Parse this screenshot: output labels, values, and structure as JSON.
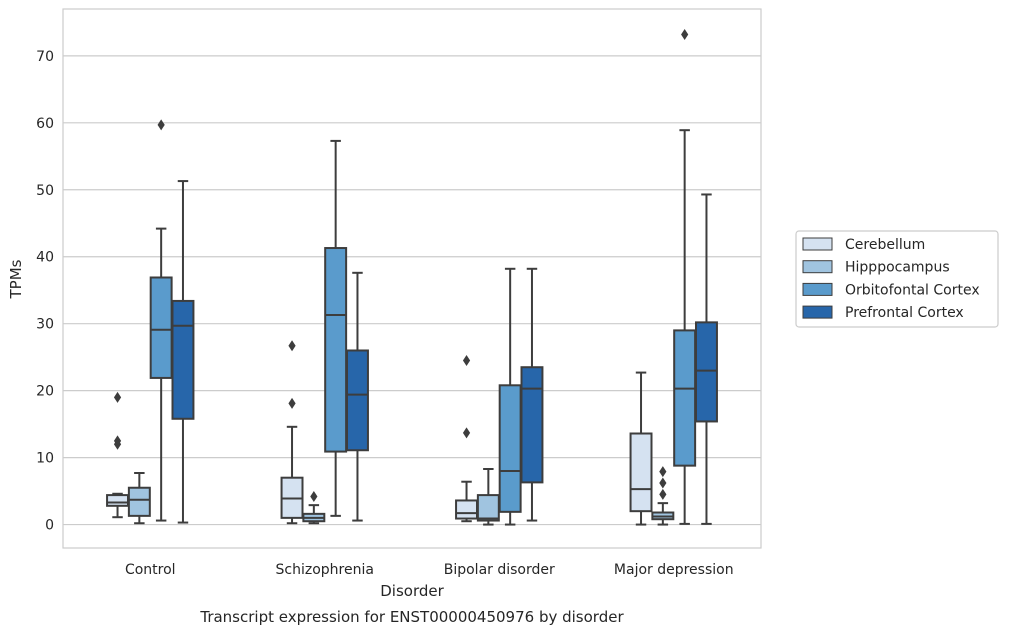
{
  "caption": "Transcript expression for ENST00000450976 by disorder",
  "chart_data": {
    "type": "box",
    "xlabel": "Disorder",
    "ylabel": "TPMs",
    "ylim": [
      -3.5,
      77
    ],
    "yticks": [
      0,
      10,
      20,
      30,
      40,
      50,
      60,
      70
    ],
    "grid": "horizontal",
    "legend_placement": "right-center",
    "categories": [
      "Control",
      "Schizophrenia",
      "Bipolar disorder",
      "Major depression"
    ],
    "series": [
      {
        "name": "Cerebellum",
        "color": "#d5e2f1",
        "boxes": [
          {
            "whisker_low": 1.1,
            "q1": 2.8,
            "median": 3.3,
            "q3": 4.4,
            "whisker_high": 4.6,
            "outliers": [
              19,
              12.5,
              12
            ]
          },
          {
            "whisker_low": 0.2,
            "q1": 1.0,
            "median": 3.9,
            "q3": 7.0,
            "whisker_high": 14.6,
            "outliers": [
              26.7,
              18.1
            ]
          },
          {
            "whisker_low": 0.5,
            "q1": 0.9,
            "median": 1.7,
            "q3": 3.6,
            "whisker_high": 6.4,
            "outliers": [
              24.5,
              13.7
            ]
          },
          {
            "whisker_low": 0.0,
            "q1": 2.0,
            "median": 5.3,
            "q3": 13.6,
            "whisker_high": 22.7,
            "outliers": []
          }
        ]
      },
      {
        "name": "Hipppocampus",
        "color": "#a0c4e0",
        "boxes": [
          {
            "whisker_low": 0.2,
            "q1": 1.3,
            "median": 3.7,
            "q3": 5.5,
            "whisker_high": 7.7,
            "outliers": []
          },
          {
            "whisker_low": 0.2,
            "q1": 0.5,
            "median": 1.0,
            "q3": 1.6,
            "whisker_high": 2.9,
            "outliers": [
              4.2
            ]
          },
          {
            "whisker_low": 0.0,
            "q1": 0.6,
            "median": 0.9,
            "q3": 4.4,
            "whisker_high": 8.3,
            "outliers": []
          },
          {
            "whisker_low": 0.0,
            "q1": 0.8,
            "median": 1.2,
            "q3": 1.8,
            "whisker_high": 3.2,
            "outliers": [
              7.9,
              6.2,
              4.5
            ]
          }
        ]
      },
      {
        "name": "Orbitofontal Cortex",
        "color": "#5a9bcc",
        "boxes": [
          {
            "whisker_low": 0.6,
            "q1": 21.9,
            "median": 29.1,
            "q3": 36.9,
            "whisker_high": 44.2,
            "outliers": [
              59.7
            ]
          },
          {
            "whisker_low": 1.3,
            "q1": 10.9,
            "median": 31.3,
            "q3": 41.3,
            "whisker_high": 57.3,
            "outliers": []
          },
          {
            "whisker_low": 0.0,
            "q1": 1.9,
            "median": 8.0,
            "q3": 20.8,
            "whisker_high": 38.2,
            "outliers": []
          },
          {
            "whisker_low": 0.1,
            "q1": 8.8,
            "median": 20.3,
            "q3": 29.0,
            "whisker_high": 58.9,
            "outliers": [
              73.2
            ]
          }
        ]
      },
      {
        "name": "Prefrontal Cortex",
        "color": "#2766aa",
        "boxes": [
          {
            "whisker_low": 0.3,
            "q1": 15.8,
            "median": 29.7,
            "q3": 33.4,
            "whisker_high": 51.3,
            "outliers": []
          },
          {
            "whisker_low": 0.6,
            "q1": 11.1,
            "median": 19.4,
            "q3": 26.0,
            "whisker_high": 37.6,
            "outliers": []
          },
          {
            "whisker_low": 0.6,
            "q1": 6.3,
            "median": 20.3,
            "q3": 23.5,
            "whisker_high": 38.2,
            "outliers": []
          },
          {
            "whisker_low": 0.1,
            "q1": 15.4,
            "median": 23.0,
            "q3": 30.2,
            "whisker_high": 49.3,
            "outliers": []
          }
        ]
      }
    ]
  }
}
